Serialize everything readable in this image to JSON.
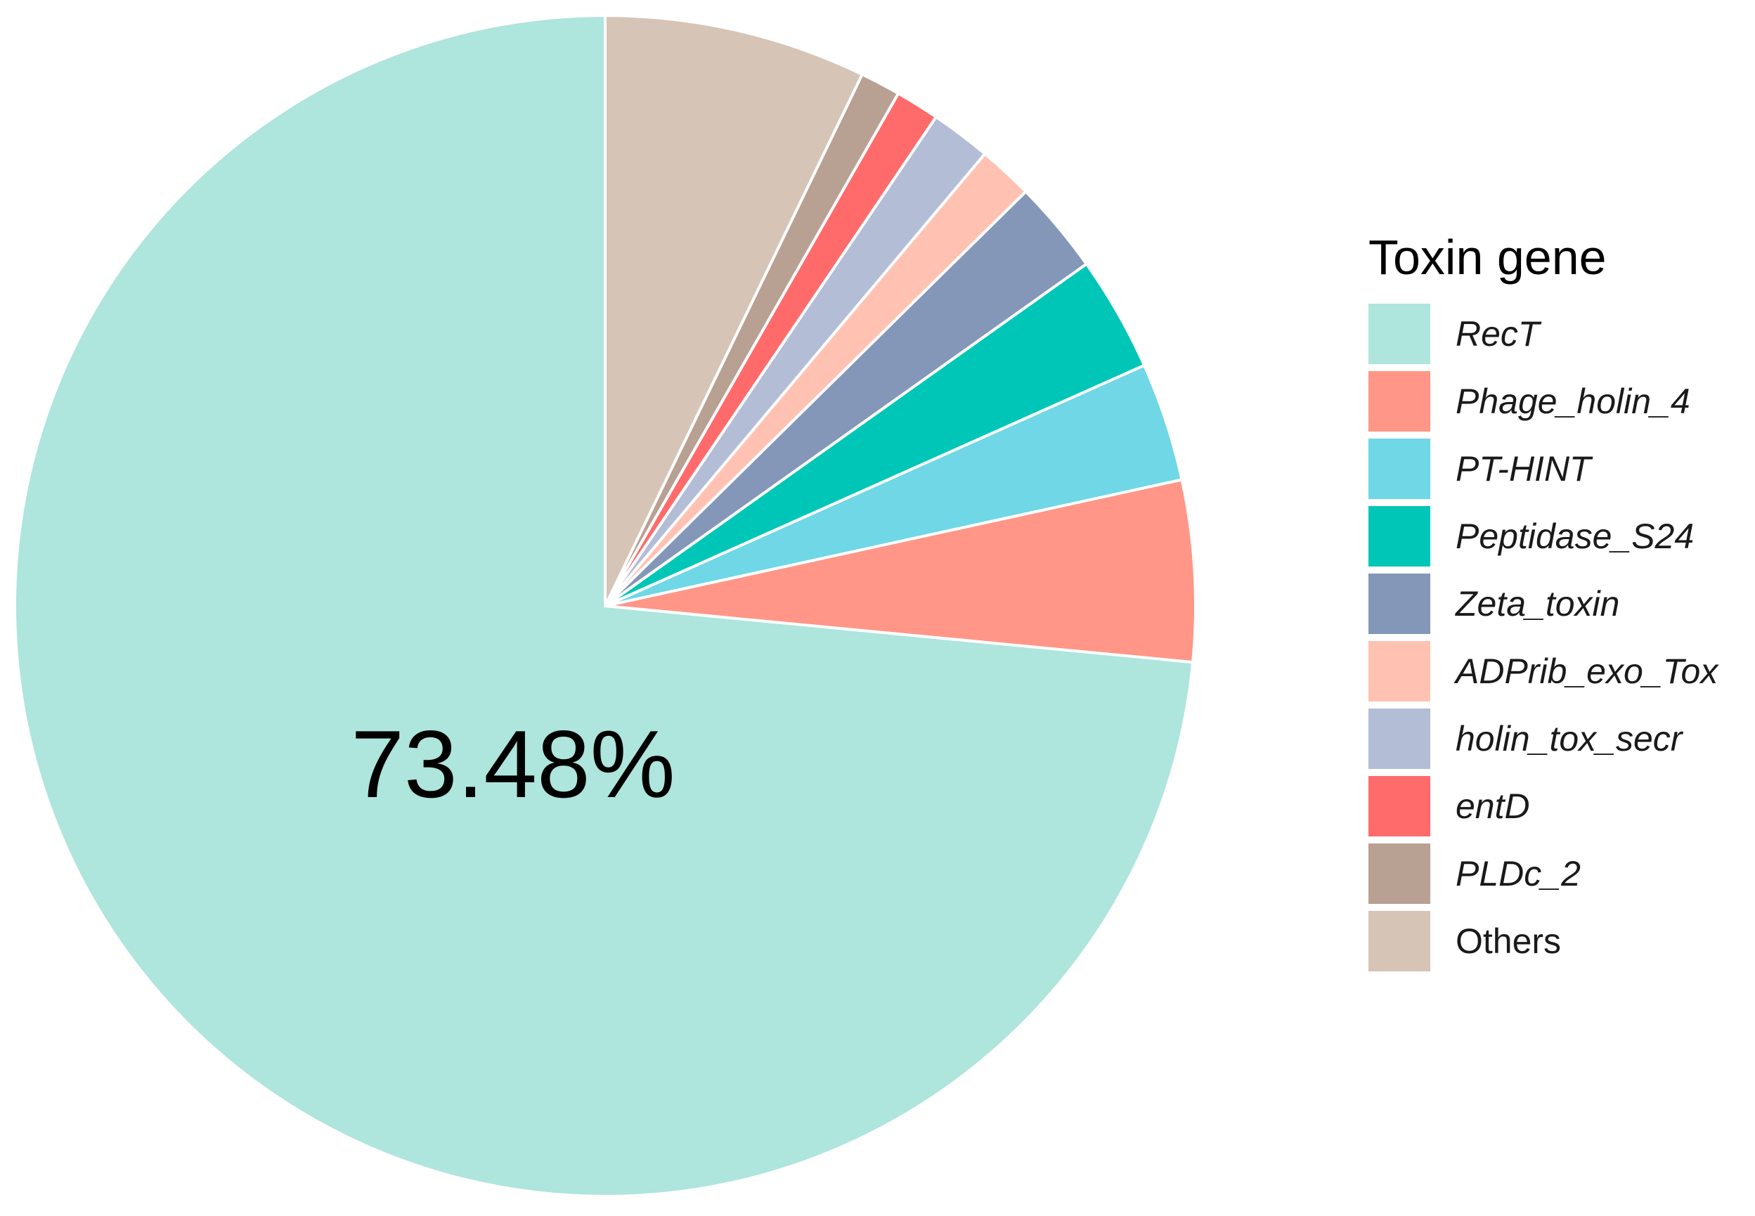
{
  "chart_data": {
    "type": "pie",
    "legend_title": "Toxin gene",
    "legend_position": "right",
    "start_angle": "12 o'clock",
    "direction": "counterclockwise",
    "slice_label": "73.48%",
    "slices": [
      {
        "label": "RecT",
        "value": 73.48,
        "color": "#aee5dc",
        "italic": true
      },
      {
        "label": "Phage_holin_4",
        "value": 4.95,
        "color": "#ff9687",
        "italic": true
      },
      {
        "label": "PT-HINT",
        "value": 3.25,
        "color": "#6fd7e5",
        "italic": true
      },
      {
        "label": "Peptidase_S24",
        "value": 3.15,
        "color": "#00c6b7",
        "italic": true
      },
      {
        "label": "Zeta_toxin",
        "value": 2.55,
        "color": "#8497b8",
        "italic": true
      },
      {
        "label": "ADPrib_exo_Tox",
        "value": 1.5,
        "color": "#ffc2b2",
        "italic": true
      },
      {
        "label": "holin_tox_secr",
        "value": 1.65,
        "color": "#b3bdd6",
        "italic": true
      },
      {
        "label": "entD",
        "value": 1.2,
        "color": "#ff6b6b",
        "italic": true
      },
      {
        "label": "PLDc_2",
        "value": 1.1,
        "color": "#b8a092",
        "italic": true
      },
      {
        "label": "Others",
        "value": 7.17,
        "color": "#d6c4b6",
        "italic": false
      }
    ]
  }
}
